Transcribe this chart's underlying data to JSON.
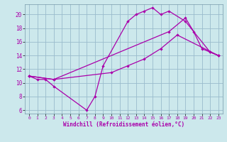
{
  "bg_color": "#cce8ec",
  "line_color": "#aa00aa",
  "grid_color": "#99bbcc",
  "xlabel": "Windchill (Refroidissement éolien,°C)",
  "xlim": [
    -0.5,
    23.5
  ],
  "ylim": [
    5.5,
    21.5
  ],
  "xticks": [
    0,
    1,
    2,
    3,
    4,
    5,
    6,
    7,
    8,
    9,
    10,
    11,
    12,
    13,
    14,
    15,
    16,
    17,
    18,
    19,
    20,
    21,
    22,
    23
  ],
  "yticks": [
    6,
    8,
    10,
    12,
    14,
    16,
    18,
    20
  ],
  "line1_x": [
    0,
    1,
    2,
    3,
    7,
    8,
    9,
    12,
    13,
    14,
    15,
    16,
    17,
    19,
    22,
    23
  ],
  "line1_y": [
    11,
    10.5,
    10.5,
    9.5,
    6,
    8,
    12.5,
    19,
    20,
    20.5,
    21,
    20,
    20.5,
    19,
    14.5,
    14
  ],
  "line2_x": [
    0,
    3,
    10,
    12,
    14,
    16,
    18,
    23
  ],
  "line2_y": [
    11,
    10.5,
    11.5,
    12.5,
    13.5,
    15,
    17,
    14
  ],
  "line3_x": [
    0,
    3,
    17,
    19,
    20,
    21,
    22,
    23
  ],
  "line3_y": [
    11,
    10.5,
    17.5,
    19.5,
    17.5,
    15,
    14.5,
    14
  ]
}
